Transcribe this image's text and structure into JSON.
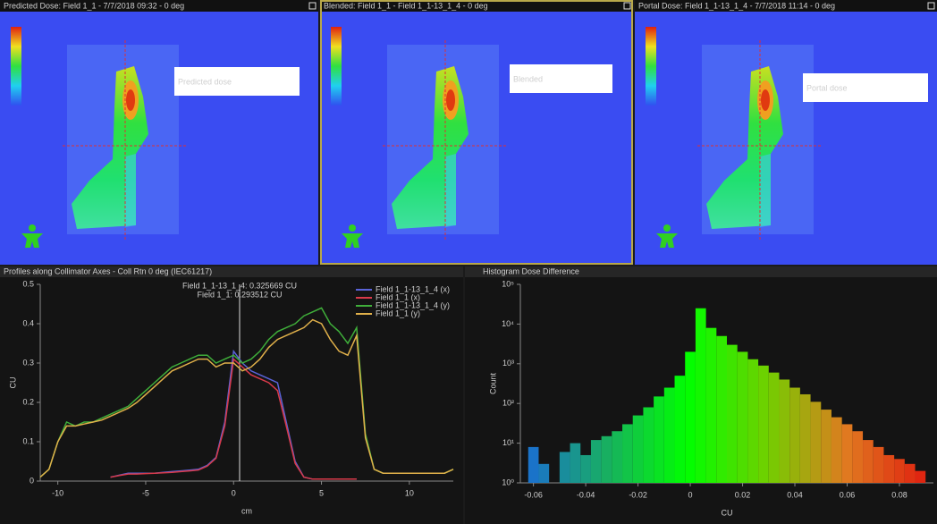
{
  "panels": [
    {
      "header": "Predicted Dose: Field 1_1 - 7/7/2018 09:32 - 0 deg",
      "label": "Predicted dose"
    },
    {
      "header": "Blended: Field 1_1 - Field 1_1-13_1_4 - 0 deg",
      "label": "Blended"
    },
    {
      "header": "Portal Dose: Field 1_1-13_1_4 - 7/7/2018 11:14 - 0 deg",
      "label": "Portal dose"
    }
  ],
  "chart_data": [
    {
      "type": "line",
      "title": "Profiles along Collimator Axes - Coll Rtn 0 deg (IEC61217)",
      "annotations": [
        "Field 1_1-13_1_4: 0.325669 CU",
        "Field 1_1: 0.293512 CU"
      ],
      "x_label": "cm",
      "y_label": "CU",
      "x": [
        -11,
        -10.5,
        -10,
        -9.5,
        -9,
        -8.5,
        -8,
        -7.5,
        -7,
        -6.5,
        -6,
        -5.5,
        -5,
        -4.5,
        -4,
        -3.5,
        -3,
        -2.5,
        -2,
        -1.5,
        -1,
        -0.5,
        0,
        0.5,
        1,
        1.5,
        2,
        2.5,
        3,
        3.5,
        4,
        4.5,
        5,
        5.5,
        6,
        6.5,
        7,
        7.5,
        8,
        8.5,
        9,
        9.5,
        10,
        10.5,
        11,
        11.5,
        12,
        12.5
      ],
      "series": [
        {
          "name": "Field 1_1-13_1_4 (x)",
          "color": "#5a63d8",
          "values": [
            null,
            null,
            null,
            null,
            null,
            null,
            null,
            null,
            0.01,
            0.015,
            0.02,
            0.02,
            0.02,
            0.02,
            0.022,
            0.024,
            0.026,
            0.028,
            0.03,
            0.04,
            0.06,
            0.15,
            0.33,
            0.3,
            0.28,
            0.27,
            0.26,
            0.25,
            0.15,
            0.05,
            0.01,
            0.005,
            0.005,
            0.005,
            0.005,
            0.005,
            0.005,
            null,
            null,
            null,
            null,
            null,
            null,
            null,
            null,
            null,
            null,
            null
          ]
        },
        {
          "name": "Field 1_1 (x)",
          "color": "#d83a4a",
          "values": [
            null,
            null,
            null,
            null,
            null,
            null,
            null,
            null,
            0.01,
            0.014,
            0.018,
            0.018,
            0.019,
            0.02,
            0.021,
            0.022,
            0.024,
            0.026,
            0.028,
            0.038,
            0.058,
            0.14,
            0.31,
            0.29,
            0.27,
            0.26,
            0.25,
            0.23,
            0.14,
            0.045,
            0.01,
            0.005,
            0.005,
            0.005,
            0.005,
            0.005,
            0.005,
            null,
            null,
            null,
            null,
            null,
            null,
            null,
            null,
            null,
            null,
            null
          ]
        },
        {
          "name": "Field 1_1-13_1_4 (y)",
          "color": "#3fae3a",
          "values": [
            0.01,
            0.03,
            0.1,
            0.15,
            0.14,
            0.15,
            0.15,
            0.16,
            0.17,
            0.18,
            0.19,
            0.21,
            0.23,
            0.25,
            0.27,
            0.29,
            0.3,
            0.31,
            0.32,
            0.32,
            0.3,
            0.31,
            0.32,
            0.3,
            0.31,
            0.33,
            0.36,
            0.38,
            0.39,
            0.4,
            0.42,
            0.43,
            0.44,
            0.4,
            0.38,
            0.35,
            0.39,
            0.12,
            0.03,
            0.02,
            0.02,
            0.02,
            0.02,
            0.02,
            0.02,
            0.02,
            0.02,
            0.03
          ]
        },
        {
          "name": "Field 1_1 (y)",
          "color": "#e0b04a",
          "values": [
            0.01,
            0.03,
            0.1,
            0.14,
            0.14,
            0.145,
            0.15,
            0.155,
            0.165,
            0.175,
            0.185,
            0.2,
            0.22,
            0.24,
            0.26,
            0.28,
            0.29,
            0.3,
            0.31,
            0.31,
            0.29,
            0.3,
            0.3,
            0.28,
            0.29,
            0.31,
            0.34,
            0.36,
            0.37,
            0.38,
            0.39,
            0.41,
            0.4,
            0.36,
            0.33,
            0.32,
            0.37,
            0.11,
            0.03,
            0.02,
            0.02,
            0.02,
            0.02,
            0.02,
            0.02,
            0.02,
            0.02,
            0.03
          ]
        }
      ],
      "xlim": [
        -11,
        12.5
      ],
      "xticks": [
        -10,
        -5,
        0,
        5,
        10
      ],
      "ylim": [
        0,
        0.5
      ],
      "yticks": [
        0,
        0.1,
        0.2,
        0.3,
        0.4,
        0.5
      ],
      "grid": false
    },
    {
      "type": "histogram",
      "title": "Histogram Dose Difference",
      "x_label": "CU",
      "y_label": "Count",
      "bins": [
        -0.062,
        -0.058,
        -0.054,
        -0.05,
        -0.046,
        -0.042,
        -0.038,
        -0.034,
        -0.03,
        -0.026,
        -0.022,
        -0.018,
        -0.014,
        -0.01,
        -0.006,
        -0.002,
        0.002,
        0.006,
        0.01,
        0.014,
        0.018,
        0.022,
        0.026,
        0.03,
        0.034,
        0.038,
        0.042,
        0.046,
        0.05,
        0.054,
        0.058,
        0.062,
        0.066,
        0.07,
        0.074,
        0.078,
        0.082,
        0.086,
        0.09
      ],
      "counts": [
        8,
        3,
        1,
        6,
        10,
        5,
        12,
        15,
        20,
        30,
        50,
        80,
        150,
        250,
        500,
        2000,
        25000,
        8000,
        5000,
        3000,
        2000,
        1300,
        900,
        600,
        400,
        250,
        170,
        110,
        70,
        45,
        30,
        20,
        12,
        8,
        5,
        4,
        3,
        2
      ],
      "colors": [
        "#1a6fd0",
        "#18b060",
        "#00ff00",
        "#70d000",
        "#e07a20",
        "#e02010"
      ],
      "log_y": true,
      "xlim": [
        -0.065,
        0.093
      ],
      "xticks": [
        -0.06,
        -0.04,
        -0.02,
        0,
        0.02,
        0.04,
        0.06,
        0.08
      ],
      "ylim": [
        1,
        100000
      ],
      "yticks": [
        {
          "value": 1,
          "label": "10⁰"
        },
        {
          "value": 10,
          "label": "10¹"
        },
        {
          "value": 100,
          "label": "10²"
        },
        {
          "value": 1000,
          "label": "10³"
        },
        {
          "value": 10000,
          "label": "10⁴"
        },
        {
          "value": 100000,
          "label": "10⁵"
        }
      ]
    }
  ]
}
